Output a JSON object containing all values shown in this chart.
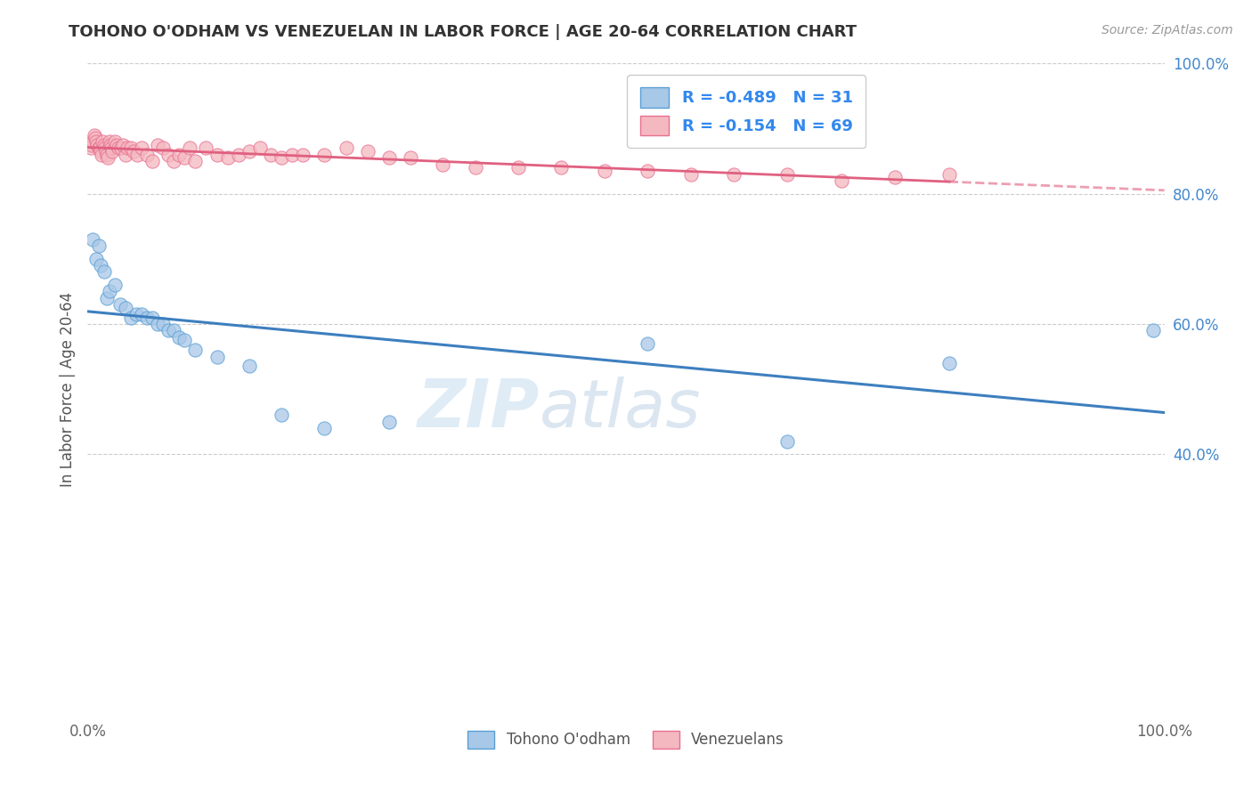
{
  "title": "TOHONO O'ODHAM VS VENEZUELAN IN LABOR FORCE | AGE 20-64 CORRELATION CHART",
  "source": "Source: ZipAtlas.com",
  "ylabel": "In Labor Force | Age 20-64",
  "legend_label_blue": "Tohono O'odham",
  "legend_label_pink": "Venezuelans",
  "R_blue": -0.489,
  "N_blue": 31,
  "R_pink": -0.154,
  "N_pink": 69,
  "blue_color": "#a8c8e8",
  "pink_color": "#f4b8c0",
  "blue_edge_color": "#5a9fd4",
  "pink_edge_color": "#e87090",
  "blue_line_color": "#3d7fbf",
  "pink_line_color": "#e06080",
  "watermark": "ZIPatlas",
  "blue_scatter_x": [
    0.005,
    0.008,
    0.01,
    0.012,
    0.015,
    0.018,
    0.02,
    0.025,
    0.03,
    0.035,
    0.04,
    0.045,
    0.05,
    0.055,
    0.06,
    0.065,
    0.07,
    0.075,
    0.08,
    0.085,
    0.09,
    0.1,
    0.12,
    0.15,
    0.18,
    0.22,
    0.28,
    0.52,
    0.65,
    0.8,
    0.99
  ],
  "blue_scatter_y": [
    0.73,
    0.7,
    0.72,
    0.69,
    0.68,
    0.64,
    0.65,
    0.66,
    0.63,
    0.625,
    0.61,
    0.615,
    0.615,
    0.61,
    0.61,
    0.6,
    0.6,
    0.59,
    0.59,
    0.58,
    0.575,
    0.56,
    0.55,
    0.535,
    0.46,
    0.44,
    0.45,
    0.57,
    0.42,
    0.54,
    0.59
  ],
  "pink_scatter_x": [
    0.003,
    0.004,
    0.005,
    0.006,
    0.007,
    0.008,
    0.009,
    0.01,
    0.011,
    0.012,
    0.013,
    0.014,
    0.015,
    0.016,
    0.017,
    0.018,
    0.019,
    0.02,
    0.021,
    0.022,
    0.023,
    0.025,
    0.027,
    0.029,
    0.031,
    0.033,
    0.035,
    0.037,
    0.04,
    0.043,
    0.046,
    0.05,
    0.055,
    0.06,
    0.065,
    0.07,
    0.075,
    0.08,
    0.085,
    0.09,
    0.095,
    0.1,
    0.11,
    0.12,
    0.13,
    0.14,
    0.15,
    0.16,
    0.17,
    0.18,
    0.19,
    0.2,
    0.22,
    0.24,
    0.26,
    0.28,
    0.3,
    0.33,
    0.36,
    0.4,
    0.44,
    0.48,
    0.52,
    0.56,
    0.6,
    0.65,
    0.7,
    0.75,
    0.8
  ],
  "pink_scatter_y": [
    0.87,
    0.875,
    0.88,
    0.89,
    0.885,
    0.88,
    0.875,
    0.87,
    0.87,
    0.865,
    0.86,
    0.88,
    0.875,
    0.87,
    0.865,
    0.86,
    0.855,
    0.88,
    0.875,
    0.87,
    0.865,
    0.88,
    0.875,
    0.87,
    0.87,
    0.875,
    0.86,
    0.87,
    0.87,
    0.865,
    0.86,
    0.87,
    0.86,
    0.85,
    0.875,
    0.87,
    0.86,
    0.85,
    0.86,
    0.855,
    0.87,
    0.85,
    0.87,
    0.86,
    0.855,
    0.86,
    0.865,
    0.87,
    0.86,
    0.855,
    0.86,
    0.86,
    0.86,
    0.87,
    0.865,
    0.855,
    0.855,
    0.845,
    0.84,
    0.84,
    0.84,
    0.835,
    0.835,
    0.83,
    0.83,
    0.83,
    0.82,
    0.825,
    0.83
  ],
  "xlim": [
    0.0,
    1.0
  ],
  "ylim": [
    0.0,
    1.0
  ],
  "yticks_right": [
    0.4,
    0.6,
    0.8,
    1.0
  ],
  "ytick_labels_right": [
    "40.0%",
    "60.0%",
    "80.0%",
    "100.0%"
  ],
  "background_color": "#ffffff",
  "grid_color": "#cccccc"
}
